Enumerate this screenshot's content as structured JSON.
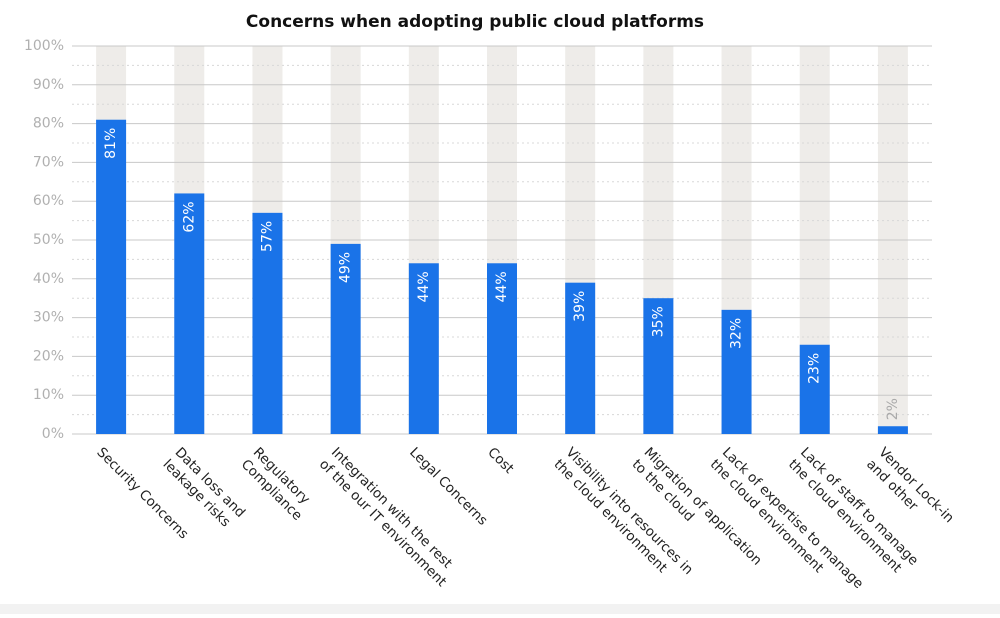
{
  "chart_data": {
    "type": "bar",
    "title": "Concerns when adopting public cloud platforms",
    "categories": [
      [
        "Security Concerns"
      ],
      [
        "Data loss and",
        "leakage risks"
      ],
      [
        "Regulatory",
        "Compliance"
      ],
      [
        "Integration with the rest",
        "of the our IT environment"
      ],
      [
        "Legal Concerns"
      ],
      [
        "Cost"
      ],
      [
        "Visibility into resources in",
        "the cloud environment"
      ],
      [
        "Migration of application",
        "to the cloud"
      ],
      [
        "Lack of expertise to manage",
        "the cloud environment"
      ],
      [
        "Lack of staff to manage",
        "the cloud environment"
      ],
      [
        "Vendor Lock-in",
        "and other"
      ]
    ],
    "values": [
      81,
      62,
      57,
      49,
      44,
      44,
      39,
      35,
      32,
      23,
      2
    ],
    "value_labels": [
      "81%",
      "62%",
      "57%",
      "49%",
      "44%",
      "44%",
      "39%",
      "35%",
      "32%",
      "23%",
      "2%"
    ],
    "color": "#1a73e8",
    "ylim": [
      0,
      100
    ],
    "yticks": [
      {
        "value": 0,
        "label": "0%"
      },
      {
        "value": 10,
        "label": "10%"
      },
      {
        "value": 20,
        "label": "20%"
      },
      {
        "value": 30,
        "label": "30%"
      },
      {
        "value": 40,
        "label": "40%"
      },
      {
        "value": 50,
        "label": "50%"
      },
      {
        "value": 60,
        "label": "60%"
      },
      {
        "value": 70,
        "label": "70%"
      },
      {
        "value": 80,
        "label": "80%"
      },
      {
        "value": 90,
        "label": "90%"
      },
      {
        "value": 100,
        "label": "100%"
      }
    ],
    "grid": true
  }
}
